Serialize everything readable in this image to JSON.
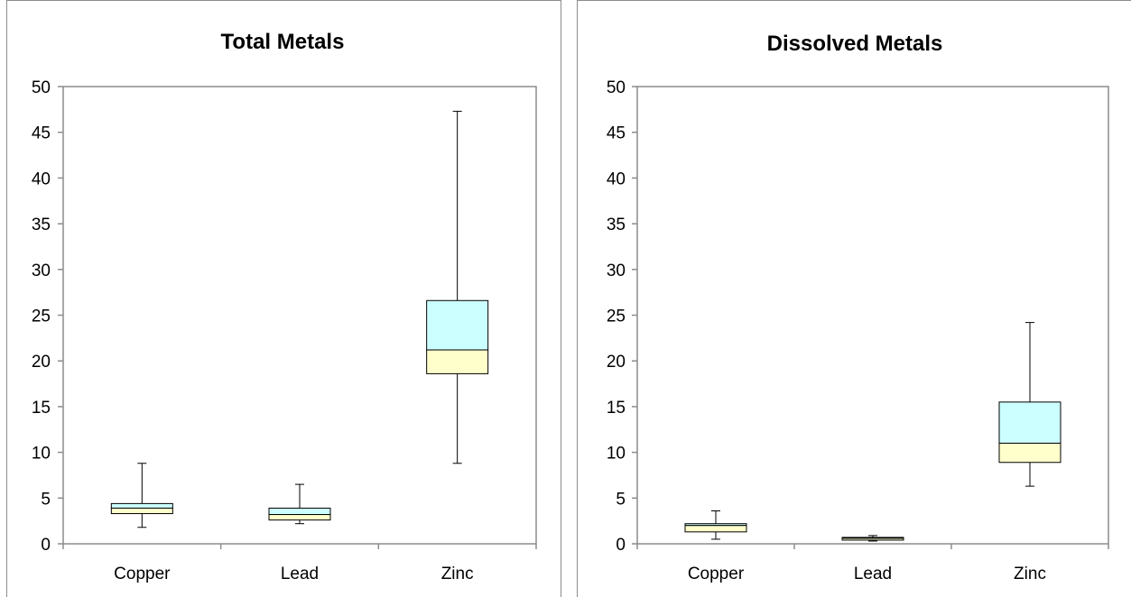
{
  "chart_data": [
    {
      "type": "boxplot",
      "title": "Total Metals",
      "categories": [
        "Copper",
        "Lead",
        "Zinc"
      ],
      "ylim": [
        0,
        50
      ],
      "yticks": [
        "0",
        "5",
        "10",
        "15",
        "20",
        "25",
        "30",
        "35",
        "40",
        "45",
        "50"
      ],
      "boxes": [
        {
          "min": 1.8,
          "q1": 3.3,
          "median": 3.9,
          "q3": 4.4,
          "max": 8.8
        },
        {
          "min": 2.2,
          "q1": 2.6,
          "median": 3.2,
          "q3": 3.9,
          "max": 6.5
        },
        {
          "min": 8.8,
          "q1": 18.6,
          "median": 21.2,
          "q3": 26.6,
          "max": 47.3
        }
      ],
      "colors": {
        "lower_box": "#ffffcc",
        "upper_box": "#ccffff"
      }
    },
    {
      "type": "boxplot",
      "title": "Dissolved Metals",
      "categories": [
        "Copper",
        "Lead",
        "Zinc"
      ],
      "ylim": [
        0,
        50
      ],
      "yticks": [
        "0",
        "5",
        "10",
        "15",
        "20",
        "25",
        "30",
        "35",
        "40",
        "45",
        "50"
      ],
      "boxes": [
        {
          "min": 0.5,
          "q1": 1.3,
          "median": 2.0,
          "q3": 2.2,
          "max": 3.6
        },
        {
          "min": 0.3,
          "q1": 0.4,
          "median": 0.6,
          "q3": 0.7,
          "max": 0.9
        },
        {
          "min": 6.3,
          "q1": 8.9,
          "median": 11.0,
          "q3": 15.5,
          "max": 24.2
        }
      ],
      "colors": {
        "lower_box": "#ffffcc",
        "upper_box": "#ccffff"
      }
    }
  ]
}
